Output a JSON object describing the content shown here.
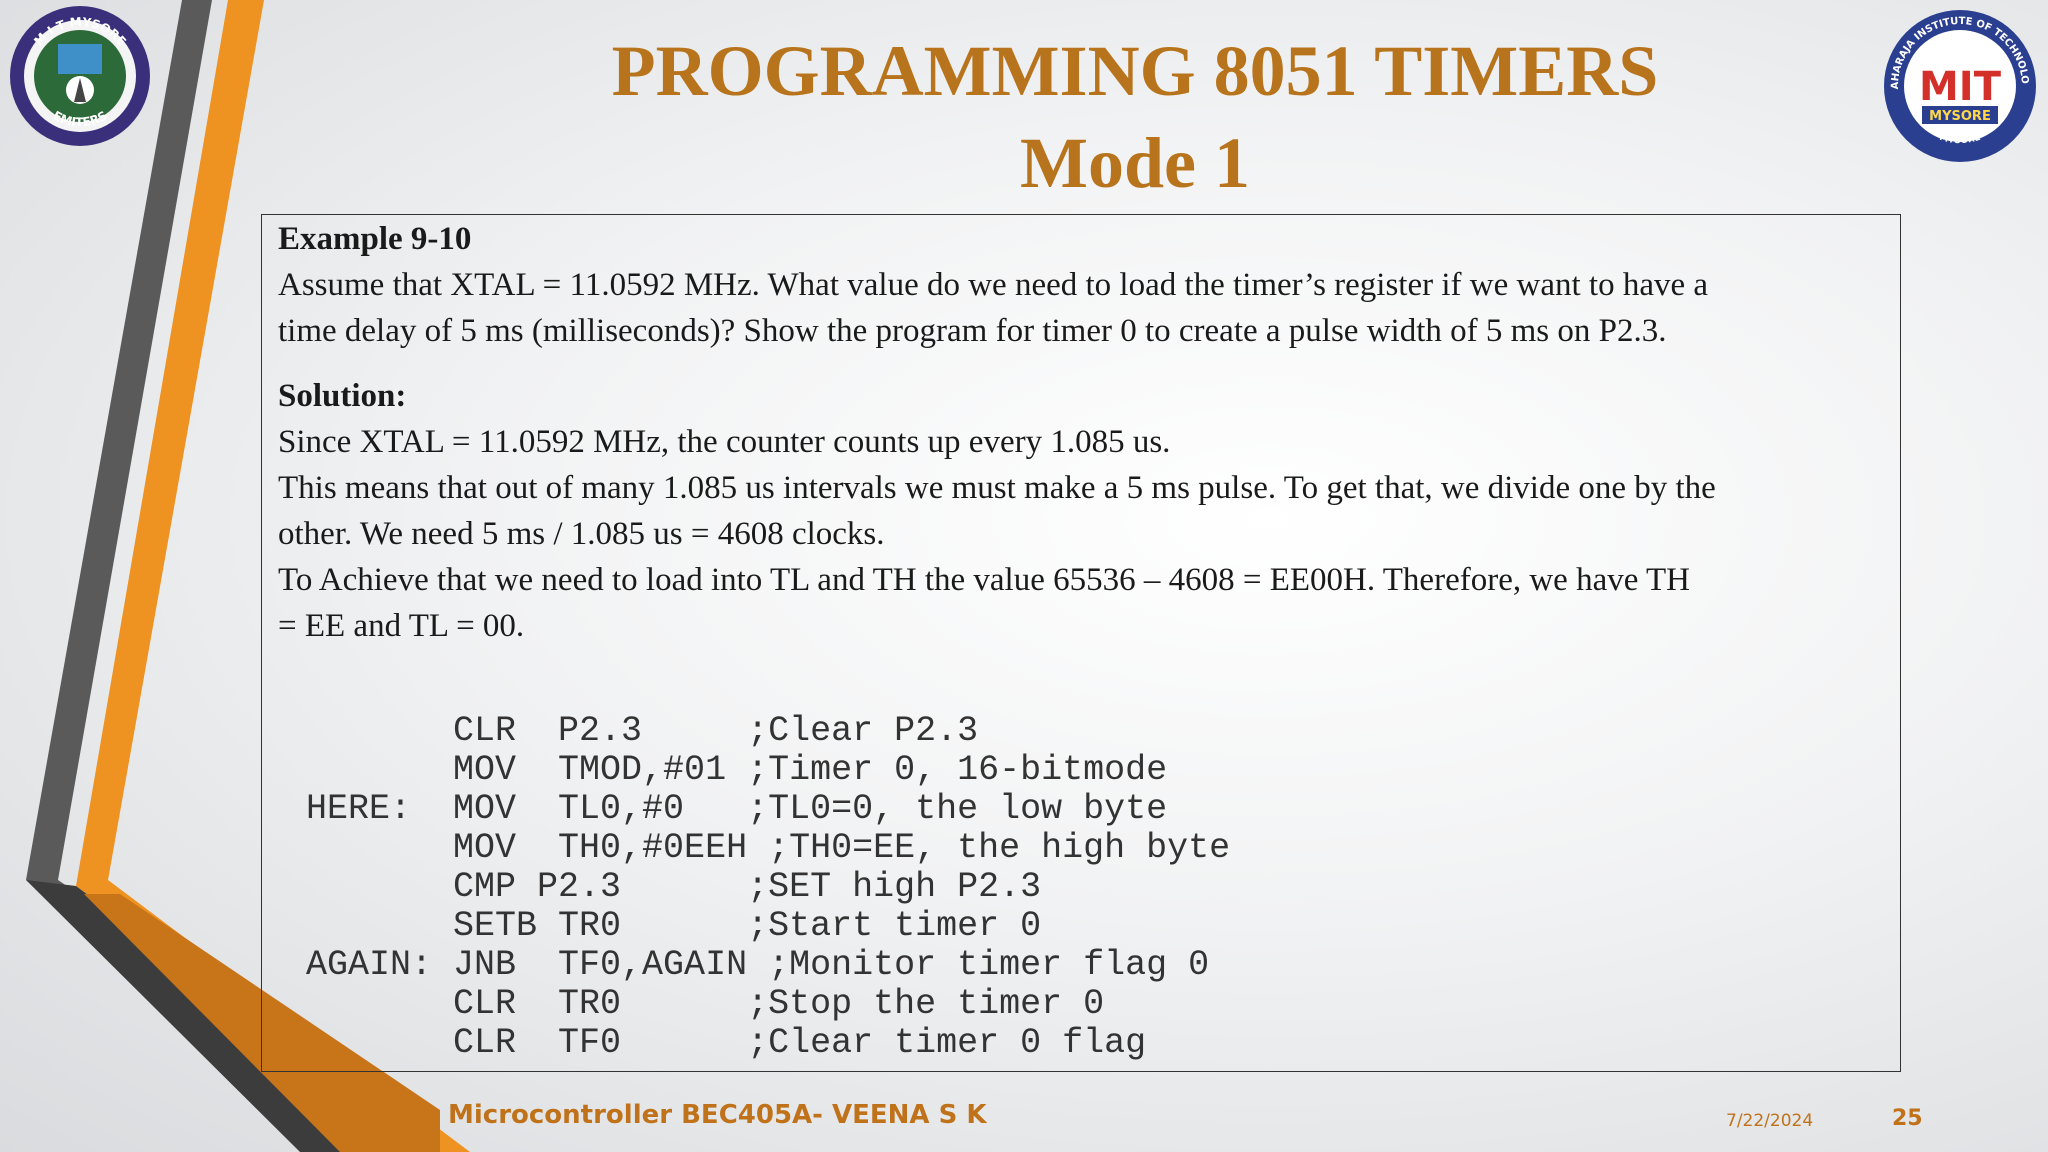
{
  "title": {
    "line1": "PROGRAMMING 8051 TIMERS",
    "line2": "Mode 1"
  },
  "logos": {
    "left": {
      "ring_text": "M I T MYSORE",
      "bottom_text": "EMITERS"
    },
    "right": {
      "ring_text": "MAHARAJA INSTITUTE OF TECHNOLOGY",
      "monogram": "MIT",
      "banner": "MYSORE",
      "bottom_text": "MYSORE"
    }
  },
  "example": {
    "heading": "Example 9-10",
    "question_line1": "Assume that XTAL = 11.0592 MHz. What value do we need to load the timer’s register if we want to have a",
    "question_line2": "time delay of 5 ms  (milliseconds)? Show the program for timer 0 to create a pulse width of 5 ms on P2.3."
  },
  "solution": {
    "heading": "Solution:",
    "line1": "Since XTAL = 11.0592 MHz, the counter counts up every 1.085 us.",
    "line2": "This means that out of many 1.085 us intervals we must make a 5 ms pulse. To get that, we divide one by the",
    "line3": "other. We need 5 ms / 1.085 us = 4608 clocks.",
    "line4": "To Achieve that we need to load into TL and TH  the value 65536 – 4608 = EE00H. Therefore, we have TH",
    "line5": "= EE and  TL = 00."
  },
  "code": {
    "lines": [
      "       CLR  P2.3     ;Clear P2.3",
      "       MOV  TMOD,#01 ;Timer 0, 16-bitmode",
      "HERE:  MOV  TL0,#0   ;TL0=0, the low byte",
      "       MOV  TH0,#0EEH ;TH0=EE, the high byte",
      "       CMP P2.3      ;SET high P2.3",
      "       SETB TR0      ;Start timer 0",
      "AGAIN: JNB  TF0,AGAIN ;Monitor timer flag 0",
      "       CLR  TR0      ;Stop the timer 0",
      "       CLR  TF0      ;Clear timer 0 flag"
    ]
  },
  "footer": {
    "course": "Microcontroller BEC405A- VEENA S K",
    "date": "7/22/2024",
    "page": "25"
  },
  "colors": {
    "accent_orange": "#e8921f",
    "title_color": "#b8741c",
    "stripe_gray": "#555555"
  }
}
